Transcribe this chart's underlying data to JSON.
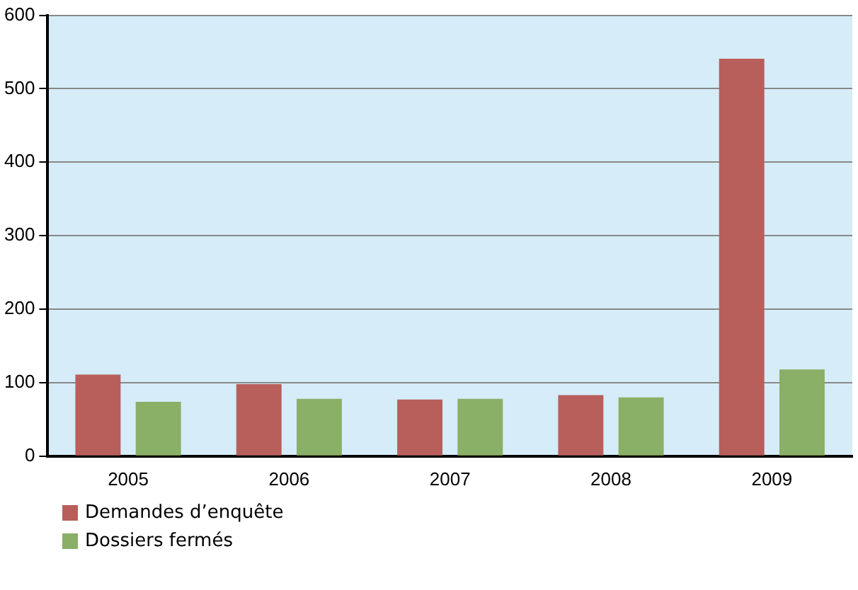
{
  "chart_data": {
    "type": "bar",
    "categories": [
      "2005",
      "2006",
      "2007",
      "2008",
      "2009"
    ],
    "series": [
      {
        "name": "Demandes d’enquête",
        "color": "#b85f5c",
        "values": [
          111,
          98,
          77,
          83,
          541
        ]
      },
      {
        "name": "Dossiers fermés",
        "color": "#8aaf66",
        "values": [
          74,
          78,
          78,
          80,
          118
        ]
      }
    ],
    "ylim": [
      0,
      600
    ],
    "yticks": [
      0,
      100,
      200,
      300,
      400,
      500,
      600
    ],
    "grid": "y",
    "legend": "bottom left"
  }
}
